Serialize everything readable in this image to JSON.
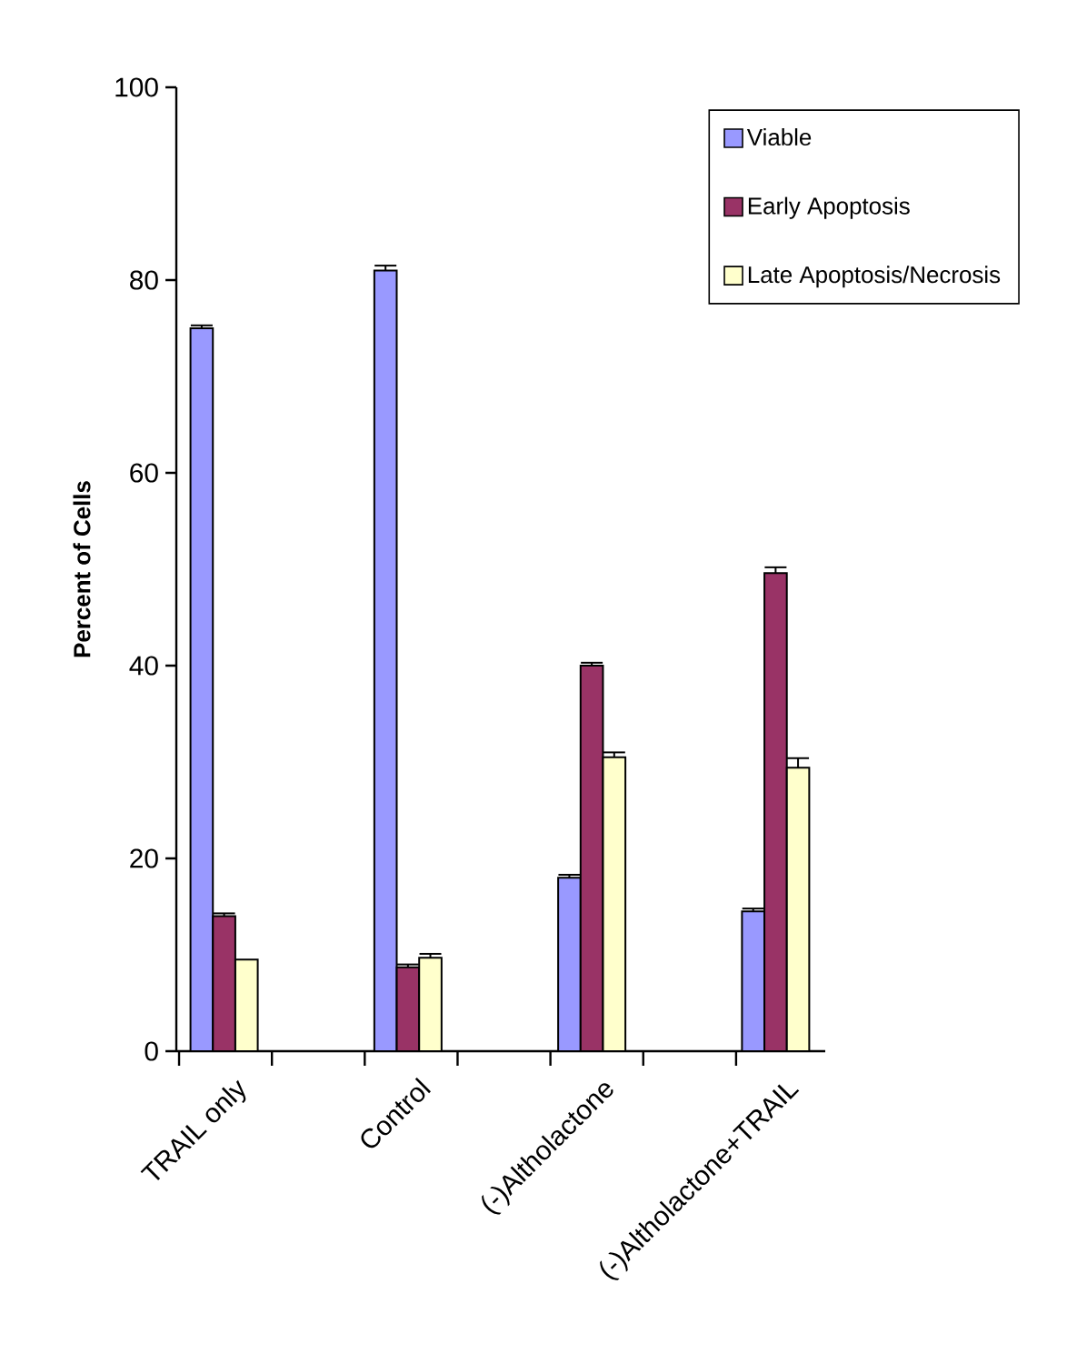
{
  "chart_data": {
    "type": "bar",
    "ylabel": "Percent of Cells",
    "categories": [
      "TRAIL only",
      "Control",
      "(-)Altholactone",
      "(-)Altholactone+TRAIL"
    ],
    "series": [
      {
        "name": "Viable",
        "color": "#9999ff",
        "values": [
          75,
          81,
          18,
          14.5
        ],
        "errors": [
          0.3,
          0.5,
          0.3,
          0.3
        ]
      },
      {
        "name": "Early Apoptosis",
        "color": "#993366",
        "values": [
          14,
          8.7,
          40,
          49.6
        ],
        "errors": [
          0.3,
          0.3,
          0.3,
          0.6
        ]
      },
      {
        "name": "Late Apoptosis/Necrosis",
        "color": "#ffffcc",
        "values": [
          9.5,
          9.7,
          30.5,
          29.4
        ],
        "errors": [
          null,
          0.4,
          0.5,
          1
        ]
      }
    ],
    "ylim": [
      0,
      100
    ],
    "yticks": [
      0,
      20,
      40,
      60,
      80,
      100
    ],
    "grid": false,
    "legend": "top right"
  }
}
